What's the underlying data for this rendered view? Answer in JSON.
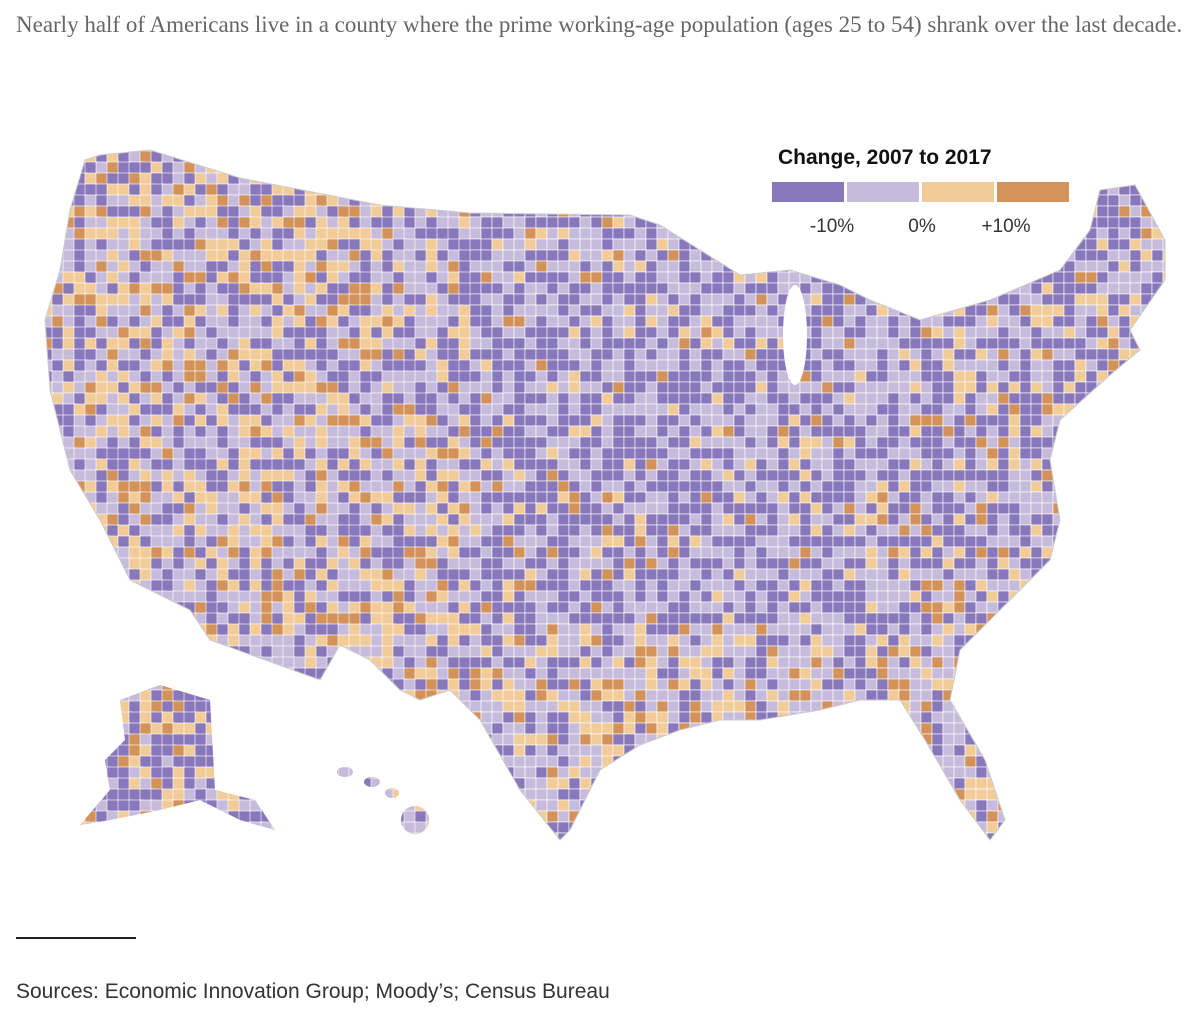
{
  "headline": "Nearly half of Americans live in a county where the prime working-age population (ages 25 to 54) shrank over the last decade.",
  "legend": {
    "title": "Change, 2007 to 2017",
    "bins": [
      {
        "color": "#8878bb",
        "label": "below -10%"
      },
      {
        "color": "#c7bbdc",
        "label": "-10% to 0%"
      },
      {
        "color": "#f1cb98",
        "label": "0% to +10%"
      },
      {
        "color": "#d39259",
        "label": "above +10%"
      }
    ],
    "ticks": [
      "-10%",
      "0%",
      "+10%"
    ]
  },
  "map": {
    "type": "county choropleth",
    "region": "United States",
    "border_color": "#2b2540"
  },
  "source": "Sources: Economic Innovation Group; Moody’s; Census Bureau"
}
